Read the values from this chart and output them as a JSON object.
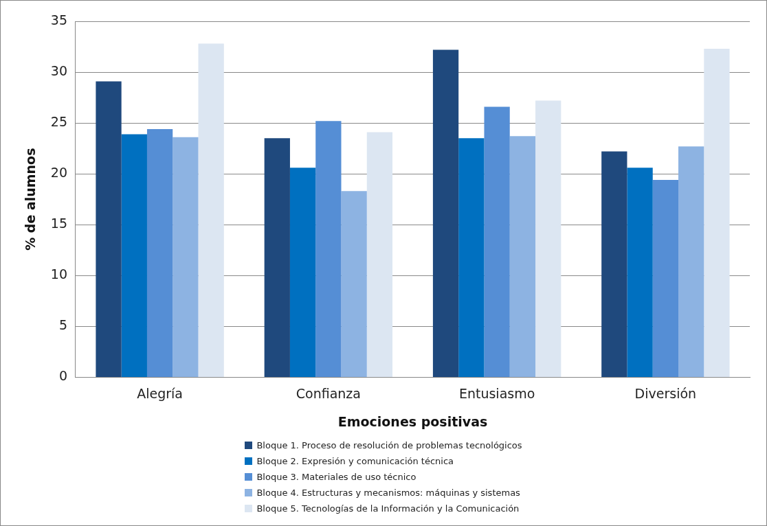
{
  "chart_data": {
    "type": "bar",
    "xlabel": "Emociones positivas",
    "ylabel": "% de alumnos",
    "categories": [
      "Alegría",
      "Confianza",
      "Entusiasmo",
      "Diversión"
    ],
    "series": [
      {
        "name": "Bloque 1. Proceso de resolución de problemas tecnológicos",
        "color": "#1f497d",
        "values": [
          29.1,
          23.5,
          32.2,
          22.2
        ]
      },
      {
        "name": "Bloque 2. Expresión y comunicación técnica",
        "color": "#0070c0",
        "values": [
          23.9,
          20.6,
          23.5,
          20.6
        ]
      },
      {
        "name": "Bloque 3. Materiales de uso técnico",
        "color": "#558ed5",
        "values": [
          24.4,
          25.2,
          26.6,
          19.4
        ]
      },
      {
        "name": "Bloque 4. Estructuras y mecanismos: máquinas y sistemas",
        "color": "#8db3e2",
        "values": [
          23.6,
          18.3,
          23.7,
          22.7
        ]
      },
      {
        "name": "Bloque 5. Tecnologías de la Información y la Comunicación",
        "color": "#dce6f2",
        "values": [
          32.8,
          24.1,
          27.2,
          32.3
        ]
      }
    ],
    "ylim": [
      0,
      35
    ],
    "yticks": [
      0,
      5,
      10,
      15,
      20,
      25,
      30,
      35
    ],
    "grid": "y",
    "legend": "bottom"
  }
}
